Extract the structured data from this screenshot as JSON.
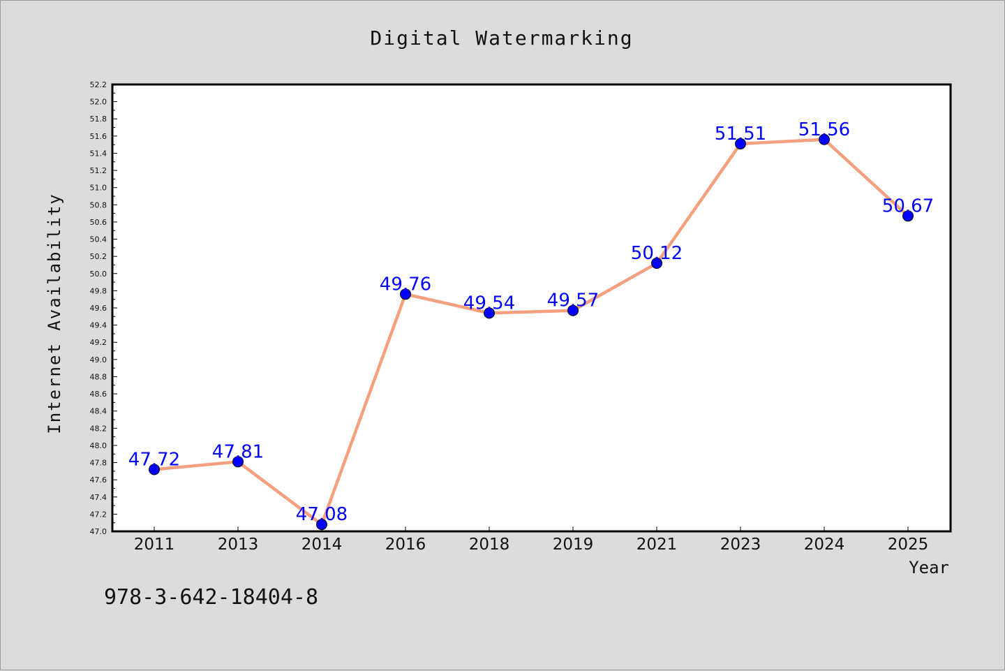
{
  "colors": {
    "background": "#dcdcdc",
    "plot_background": "#ffffff",
    "line": "#f4a07e",
    "marker": "#0000ff",
    "data_label": "#0000ff"
  },
  "footer_text": "978-3-642-18404-8",
  "chart_data": {
    "type": "line",
    "title": "Digital Watermarking",
    "xlabel": "Year",
    "ylabel": "Internet Availability",
    "categories": [
      "2011",
      "2013",
      "2014",
      "2016",
      "2018",
      "2019",
      "2021",
      "2023",
      "2024",
      "2025"
    ],
    "series": [
      {
        "values": [
          47.72,
          47.81,
          47.08,
          49.76,
          49.54,
          49.57,
          50.12,
          51.51,
          51.56,
          50.67
        ]
      }
    ],
    "data_labels": [
      "47.72",
      "47.81",
      "47.08",
      "49.76",
      "49.54",
      "49.57",
      "50.12",
      "51.51",
      "51.56",
      "50.67"
    ],
    "ylim": [
      47.0,
      52.2
    ],
    "yticks": [
      "47.0",
      "47.2",
      "47.4",
      "47.6",
      "47.8",
      "48.0",
      "48.2",
      "48.4",
      "48.6",
      "48.8",
      "49.0",
      "49.2",
      "49.4",
      "49.6",
      "49.8",
      "50.0",
      "50.2",
      "50.4",
      "50.6",
      "50.8",
      "51.0",
      "51.2",
      "51.4",
      "51.6",
      "51.8",
      "52.0",
      "52.2"
    ],
    "grid": false,
    "legend": "none",
    "marker": "circle"
  }
}
